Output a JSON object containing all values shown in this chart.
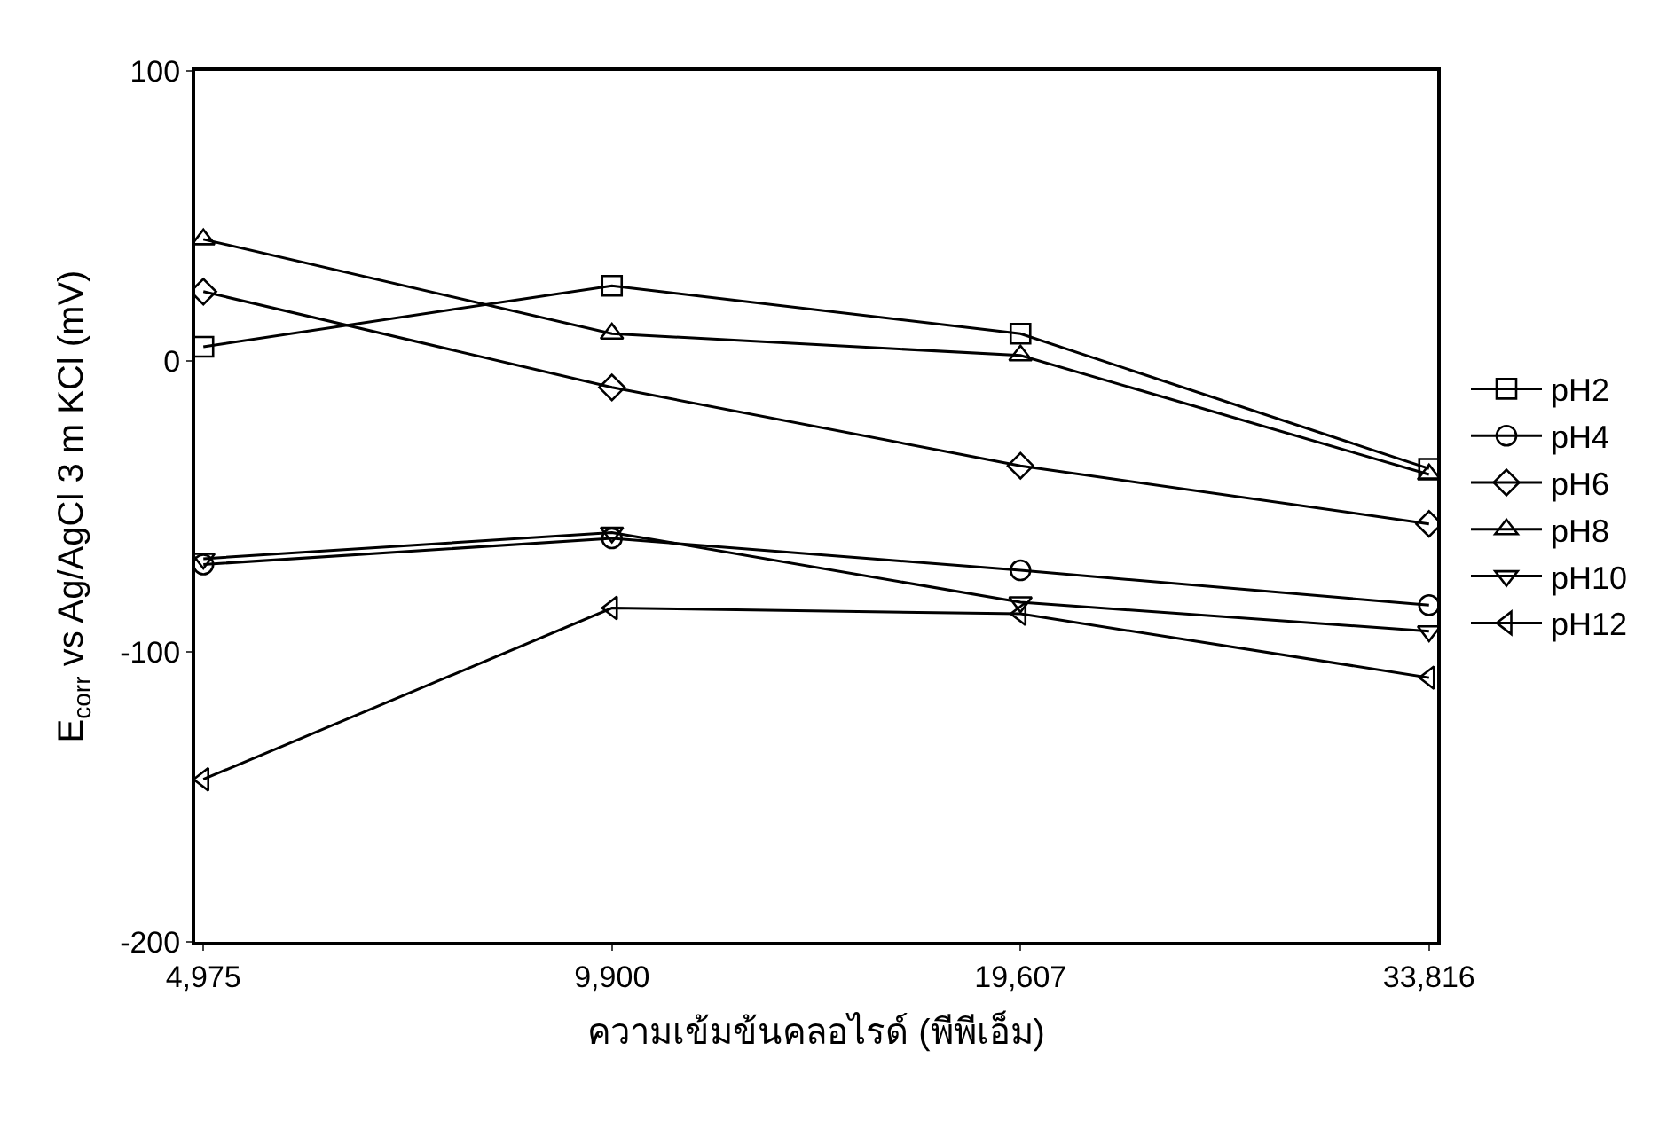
{
  "chart_data": {
    "type": "line",
    "xlabel": "ความเข้มข้นคลอไรด์ (พีพีเอ็ม)",
    "ylabel": "E$_{corr}$ vs Ag/AgCl 3 m KCl (mV)",
    "categories": [
      "4,975",
      "9,900",
      "19,607",
      "33,816"
    ],
    "ylim": [
      -200,
      100
    ],
    "yticks": [
      -200,
      -100,
      0,
      100
    ],
    "legend": "right",
    "line_style": "solid",
    "series": [
      {
        "name": "pH2",
        "color": "#000000",
        "marker": "square",
        "values": [
          5,
          26,
          9.5,
          -37
        ]
      },
      {
        "name": "pH4",
        "color": "#000000",
        "marker": "circle",
        "values": [
          -70,
          -61,
          -72,
          -84
        ]
      },
      {
        "name": "pH6",
        "color": "#000000",
        "marker": "diamond",
        "values": [
          24,
          -9,
          -36,
          -56
        ]
      },
      {
        "name": "pH8",
        "color": "#000000",
        "marker": "triangle",
        "values": [
          42,
          9.5,
          2,
          -39
        ]
      },
      {
        "name": "pH10",
        "color": "#000000",
        "marker": "triangle-down",
        "values": [
          -68,
          -59,
          -83,
          -93
        ]
      },
      {
        "name": "pH12",
        "color": "#000000",
        "marker": "triangle-left",
        "values": [
          -144,
          -85,
          -87,
          -109
        ]
      }
    ]
  }
}
